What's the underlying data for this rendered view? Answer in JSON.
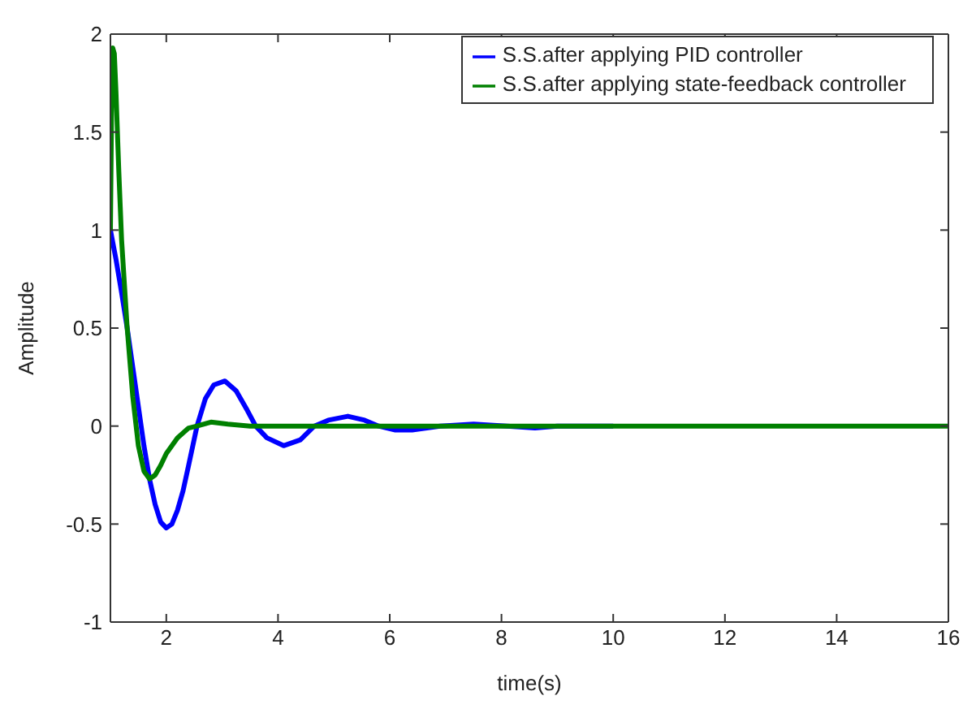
{
  "chart_data": {
    "type": "line",
    "xlabel": "time(s)",
    "ylabel": "Amplitude",
    "xlim": [
      1,
      16
    ],
    "ylim": [
      -1,
      2
    ],
    "xticks": [
      2,
      4,
      6,
      8,
      10,
      12,
      14,
      16
    ],
    "yticks": [
      -1,
      -0.5,
      0,
      0.5,
      1,
      1.5,
      2
    ],
    "grid": false,
    "legend": "top right",
    "marker": "none",
    "line_style": "solid",
    "series": [
      {
        "name": "S.S.after applying PID controller",
        "color": "#0000ff",
        "x": [
          1,
          1.1,
          1.2,
          1.3,
          1.4,
          1.5,
          1.6,
          1.7,
          1.8,
          1.9,
          2,
          2.1,
          2.2,
          2.3,
          2.4,
          2.55,
          2.7,
          2.85,
          3.05,
          3.25,
          3.45,
          3.6,
          3.8,
          4.1,
          4.4,
          4.65,
          4.9,
          5.25,
          5.55,
          5.8,
          6.1,
          6.4,
          6.9,
          7.5,
          8.1,
          8.6,
          9,
          10
        ],
        "values": [
          1,
          0.85,
          0.68,
          0.5,
          0.3,
          0.1,
          -0.1,
          -0.27,
          -0.4,
          -0.49,
          -0.52,
          -0.5,
          -0.43,
          -0.33,
          -0.2,
          0,
          0.14,
          0.21,
          0.23,
          0.18,
          0.08,
          0,
          -0.06,
          -0.1,
          -0.07,
          0,
          0.03,
          0.05,
          0.03,
          0,
          -0.02,
          -0.02,
          0,
          0.01,
          0,
          -0.01,
          0,
          0
        ]
      },
      {
        "name": "S.S.after applying state-feedback controller",
        "color": "#008000",
        "x": [
          1,
          1.02,
          1.04,
          1.07,
          1.1,
          1.15,
          1.2,
          1.3,
          1.4,
          1.5,
          1.6,
          1.7,
          1.8,
          1.9,
          2,
          2.2,
          2.4,
          2.55,
          2.8,
          3.1,
          3.5,
          4,
          5,
          6,
          8,
          10,
          12,
          14,
          16
        ],
        "values": [
          1,
          1.6,
          1.93,
          1.9,
          1.7,
          1.3,
          0.95,
          0.5,
          0.15,
          -0.1,
          -0.23,
          -0.27,
          -0.25,
          -0.2,
          -0.14,
          -0.06,
          -0.01,
          0,
          0.02,
          0.01,
          0,
          0,
          0,
          0,
          0,
          0,
          0,
          0,
          0
        ]
      }
    ]
  }
}
